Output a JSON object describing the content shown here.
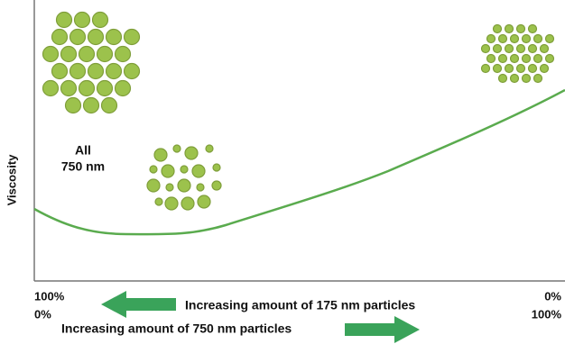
{
  "y_axis_label": "Viscosity",
  "annotation": {
    "line1": "All",
    "line2": "750 nm"
  },
  "x_axis": {
    "left_top": "100%",
    "left_bottom": "0%",
    "right_top": "0%",
    "right_bottom": "100%",
    "label_175": "Increasing amount of 175 nm particles",
    "label_750": "Increasing amount of 750 nm particles"
  }
}
